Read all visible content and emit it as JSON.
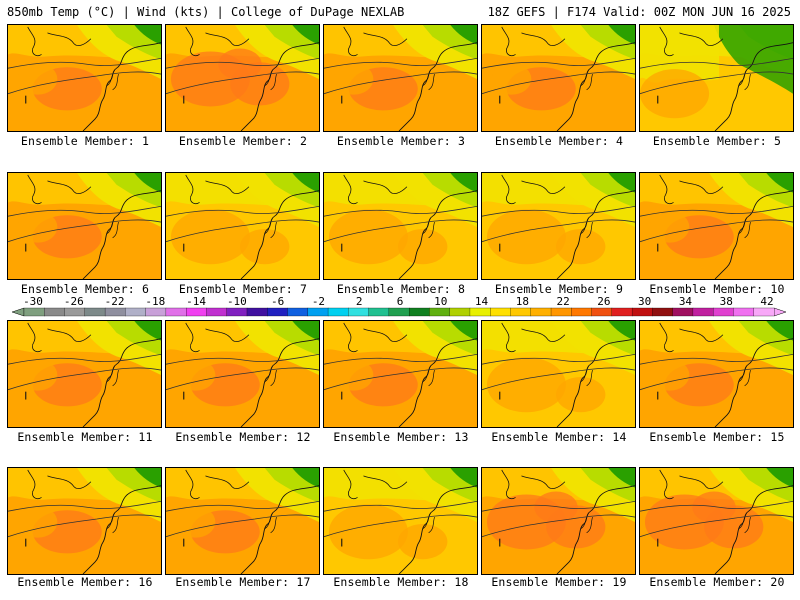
{
  "header": {
    "left": "850mb Temp (°C) | Wind (kts) | College of DuPage NEXLAB",
    "right": "18Z GEFS | F174 Valid: 00Z MON JUN 16 2025"
  },
  "caption_prefix": "Ensemble Member: ",
  "members": [
    {
      "label": "Ensemble Member: 1",
      "pattern": "warm"
    },
    {
      "label": "Ensemble Member: 2",
      "pattern": "hot"
    },
    {
      "label": "Ensemble Member: 3",
      "pattern": "warm"
    },
    {
      "label": "Ensemble Member: 4",
      "pattern": "warm"
    },
    {
      "label": "Ensemble Member: 5",
      "pattern": "cool"
    },
    {
      "label": "Ensemble Member: 6",
      "pattern": "warm"
    },
    {
      "label": "Ensemble Member: 7",
      "pattern": "mild"
    },
    {
      "label": "Ensemble Member: 8",
      "pattern": "mild"
    },
    {
      "label": "Ensemble Member: 9",
      "pattern": "mild"
    },
    {
      "label": "Ensemble Member: 10",
      "pattern": "warm"
    },
    {
      "label": "Ensemble Member: 11",
      "pattern": "warm"
    },
    {
      "label": "Ensemble Member: 12",
      "pattern": "warm"
    },
    {
      "label": "Ensemble Member: 13",
      "pattern": "warm"
    },
    {
      "label": "Ensemble Member: 14",
      "pattern": "mild"
    },
    {
      "label": "Ensemble Member: 15",
      "pattern": "warm"
    },
    {
      "label": "Ensemble Member: 16",
      "pattern": "warm"
    },
    {
      "label": "Ensemble Member: 17",
      "pattern": "warm"
    },
    {
      "label": "Ensemble Member: 18",
      "pattern": "mild"
    },
    {
      "label": "Ensemble Member: 19",
      "pattern": "hot"
    },
    {
      "label": "Ensemble Member: 20",
      "pattern": "hot"
    }
  ],
  "colorbar": {
    "labels": [
      "-30",
      "-26",
      "-22",
      "-18",
      "-14",
      "-10",
      "-6",
      "-2",
      "2",
      "6",
      "10",
      "14",
      "18",
      "22",
      "26",
      "30",
      "34",
      "38",
      "42"
    ],
    "colors": [
      "#7f9f7f",
      "#8a8a8a",
      "#9a9a9a",
      "#7d8a8a",
      "#8f8f9f",
      "#b0b0c8",
      "#c8a0d8",
      "#e070e8",
      "#f040f0",
      "#c030d0",
      "#8020c0",
      "#4010a0",
      "#2020c0",
      "#1060e0",
      "#00a0f0",
      "#00d0f0",
      "#30e0e0",
      "#20c090",
      "#20a050",
      "#108020",
      "#60b010",
      "#b0d000",
      "#e8f000",
      "#ffe000",
      "#ffc800",
      "#ffb000",
      "#ff9600",
      "#ff7800",
      "#f05010",
      "#e02020",
      "#c01010",
      "#901010",
      "#a01060",
      "#c020a0",
      "#e040d0",
      "#f070f0",
      "#f8a8f8"
    ]
  },
  "palette": {
    "hot": "#ff7a18",
    "warm": "#ffa500",
    "mild": "#ffc800",
    "yellow": "#f2e200",
    "lime": "#b8dc00",
    "green": "#2aa000"
  }
}
